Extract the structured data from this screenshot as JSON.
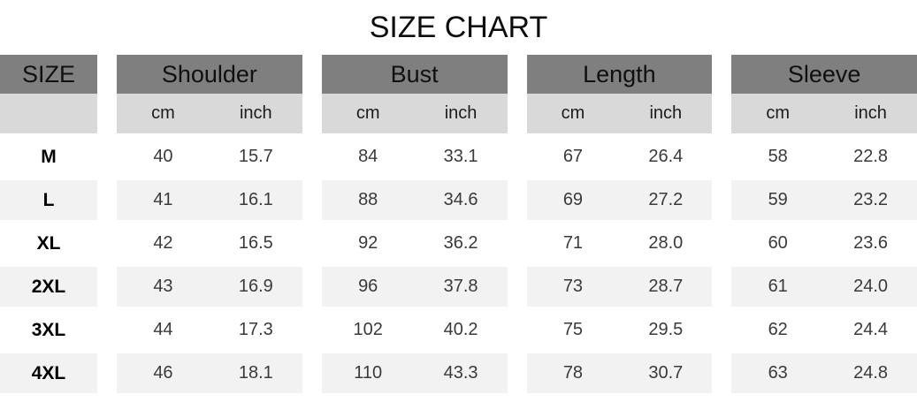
{
  "title": "SIZE CHART",
  "colors": {
    "header_bg": "#7f7f7f",
    "unit_row_bg": "#d9d9d9",
    "alt_row_bg": "#f2f2f2",
    "text": "#1a1a1a"
  },
  "chart_data": {
    "type": "table",
    "title": "SIZE CHART",
    "corner_header": "SIZE",
    "column_groups": [
      {
        "label": "Shoulder",
        "units": [
          "cm",
          "inch"
        ]
      },
      {
        "label": "Bust",
        "units": [
          "cm",
          "inch"
        ]
      },
      {
        "label": "Length",
        "units": [
          "cm",
          "inch"
        ]
      },
      {
        "label": "Sleeve",
        "units": [
          "cm",
          "inch"
        ]
      }
    ],
    "rows": [
      {
        "size": "M",
        "values": [
          "40",
          "15.7",
          "84",
          "33.1",
          "67",
          "26.4",
          "58",
          "22.8"
        ]
      },
      {
        "size": "L",
        "values": [
          "41",
          "16.1",
          "88",
          "34.6",
          "69",
          "27.2",
          "59",
          "23.2"
        ]
      },
      {
        "size": "XL",
        "values": [
          "42",
          "16.5",
          "92",
          "36.2",
          "71",
          "28.0",
          "60",
          "23.6"
        ]
      },
      {
        "size": "2XL",
        "values": [
          "43",
          "16.9",
          "96",
          "37.8",
          "73",
          "28.7",
          "61",
          "24.0"
        ]
      },
      {
        "size": "3XL",
        "values": [
          "44",
          "17.3",
          "102",
          "40.2",
          "75",
          "29.5",
          "62",
          "24.4"
        ]
      },
      {
        "size": "4XL",
        "values": [
          "46",
          "18.1",
          "110",
          "43.3",
          "78",
          "30.7",
          "63",
          "24.8"
        ]
      }
    ]
  }
}
